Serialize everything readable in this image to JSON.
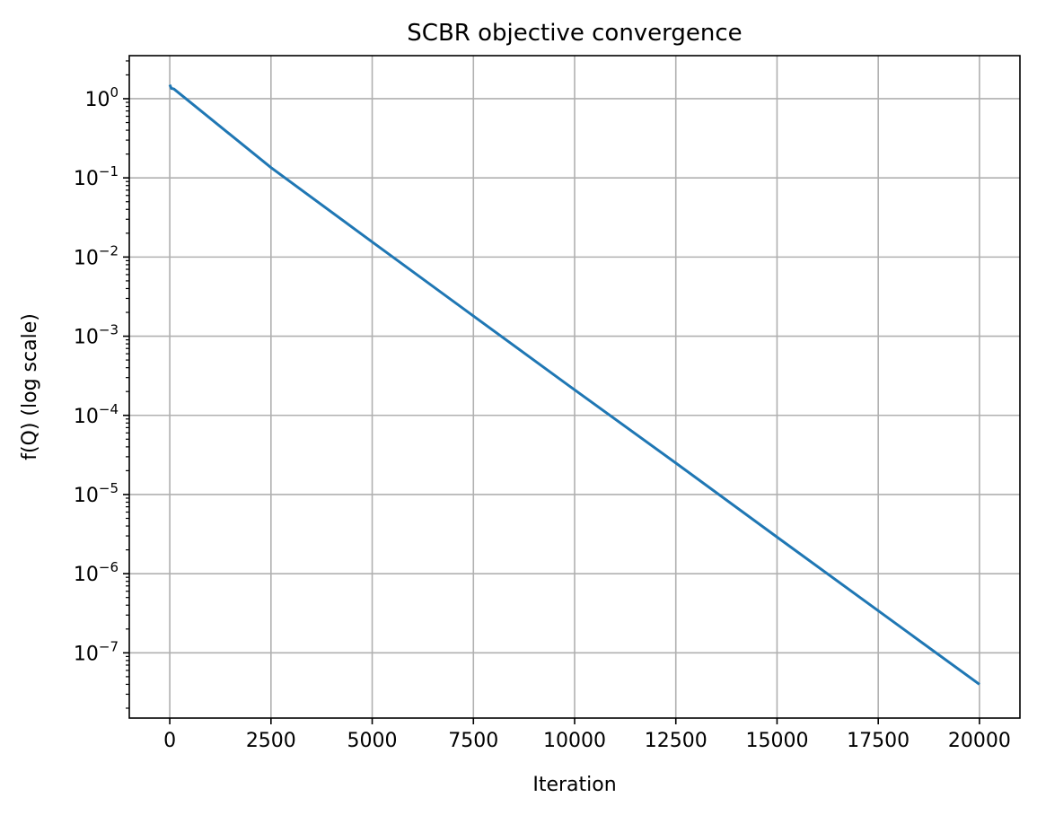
{
  "chart_data": {
    "type": "line",
    "title": "SCBR objective convergence",
    "xlabel": "Iteration",
    "ylabel": "f(Q) (log scale)",
    "yscale": "log",
    "grid": true,
    "xlim": [
      -1000,
      21000
    ],
    "ylim": [
      1.5e-08,
      3.5
    ],
    "x_ticks": [
      0,
      2500,
      5000,
      7500,
      10000,
      12500,
      15000,
      17500,
      20000
    ],
    "x_tick_labels": [
      "0",
      "2500",
      "5000",
      "7500",
      "10000",
      "12500",
      "15000",
      "17500",
      "20000"
    ],
    "y_ticks": [
      {
        "value": 1,
        "base": "10",
        "exp": "0"
      },
      {
        "value": 0.1,
        "base": "10",
        "exp": "−1"
      },
      {
        "value": 0.01,
        "base": "10",
        "exp": "−2"
      },
      {
        "value": 0.001,
        "base": "10",
        "exp": "−3"
      },
      {
        "value": 0.0001,
        "base": "10",
        "exp": "−4"
      },
      {
        "value": 1e-05,
        "base": "10",
        "exp": "−5"
      },
      {
        "value": 1e-06,
        "base": "10",
        "exp": "−6"
      },
      {
        "value": 1e-07,
        "base": "10",
        "exp": "−7"
      }
    ],
    "series": [
      {
        "color": "#1f77b4",
        "x": [
          0,
          40,
          100,
          2500,
          5000,
          7500,
          10000,
          12500,
          15000,
          17500,
          20000
        ],
        "y": [
          1.5,
          1.35,
          1.33,
          0.135,
          0.0155,
          0.0018,
          0.00021,
          2.5e-05,
          2.9e-06,
          3.4e-07,
          4e-08
        ]
      }
    ]
  }
}
